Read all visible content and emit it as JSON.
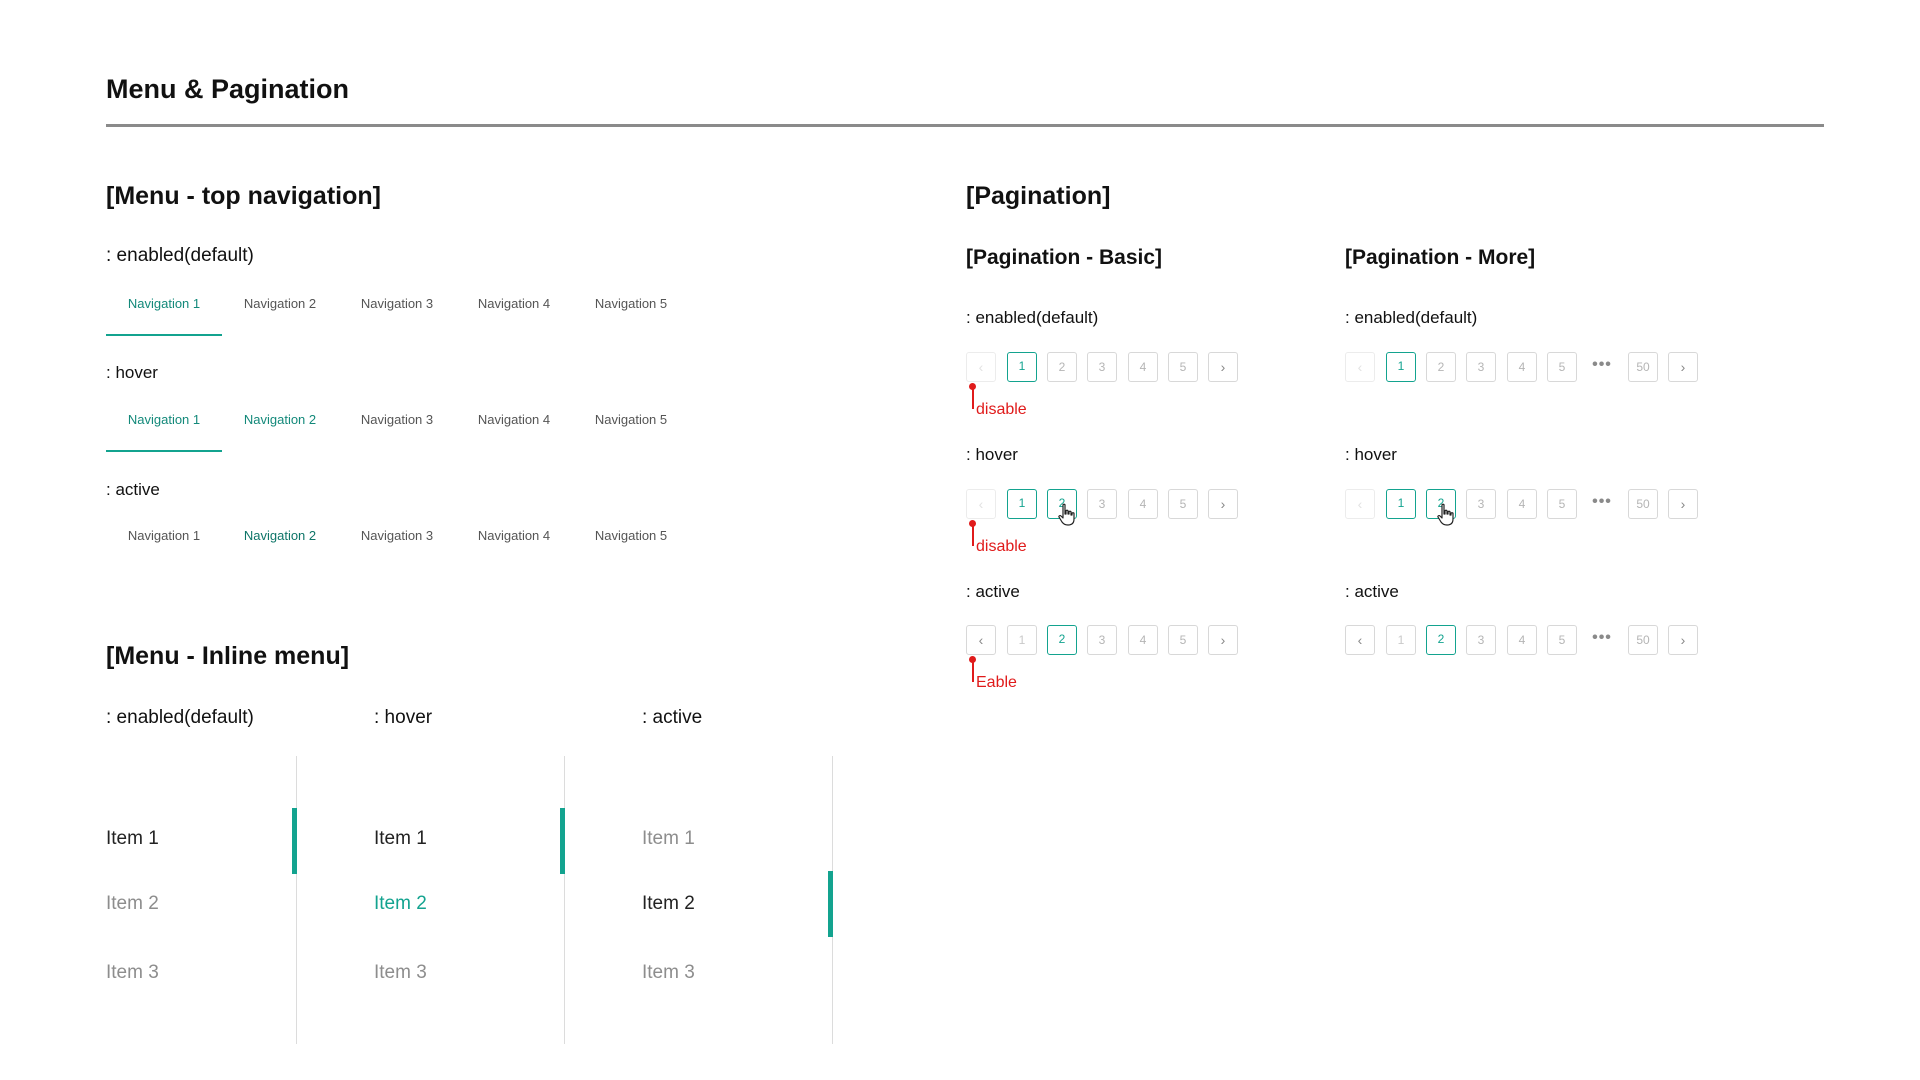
{
  "page": {
    "title": "Menu & Pagination"
  },
  "top_nav": {
    "section_title": "[Menu - top navigation]",
    "states": [
      {
        "label": ": enabled(default)",
        "items": [
          "Navigation 1",
          "Navigation 2",
          "Navigation 3",
          "Navigation 4",
          "Navigation 5"
        ],
        "selected": 1,
        "highlighted": []
      },
      {
        "label": ": hover",
        "items": [
          "Navigation 1",
          "Navigation 2",
          "Navigation 3",
          "Navigation 4",
          "Navigation 5"
        ],
        "selected": 1,
        "highlighted": [
          2
        ]
      },
      {
        "label": ": active",
        "items": [
          "Navigation 1",
          "Navigation 2",
          "Navigation 3",
          "Navigation 4",
          "Navigation 5"
        ],
        "selected": 0,
        "highlighted": [
          2
        ]
      }
    ]
  },
  "inline_menu": {
    "section_title": "[Menu - Inline menu]",
    "columns": [
      {
        "label": ": enabled(default)",
        "items": [
          "Item 1",
          "Item 2",
          "Item 3"
        ],
        "indicator_item": 1
      },
      {
        "label": ": hover",
        "items": [
          "Item 1",
          "Item 2",
          "Item 3"
        ],
        "indicator_item": 1
      },
      {
        "label": ": active",
        "items": [
          "Item 1",
          "Item 2",
          "Item 3"
        ],
        "indicator_item": 2
      }
    ]
  },
  "pagination": {
    "section_title": "[Pagination]",
    "basic": {
      "title": "[Pagination - Basic]",
      "states": [
        {
          "label": ": enabled(default)",
          "pages": [
            "1",
            "2",
            "3",
            "4",
            "5"
          ],
          "current": "1",
          "annotation": "disable"
        },
        {
          "label": ": hover",
          "pages": [
            "1",
            "2",
            "3",
            "4",
            "5"
          ],
          "current": "1",
          "hover": "2",
          "annotation": "disable"
        },
        {
          "label": ": active",
          "pages": [
            "1",
            "2",
            "3",
            "4",
            "5"
          ],
          "current": "2",
          "annotation": "Eable"
        }
      ]
    },
    "more": {
      "title": "[Pagination - More]",
      "states": [
        {
          "label": ": enabled(default)",
          "pages": [
            "1",
            "2",
            "3",
            "4",
            "5"
          ],
          "last": "50",
          "current": "1"
        },
        {
          "label": ": hover",
          "pages": [
            "1",
            "2",
            "3",
            "4",
            "5"
          ],
          "last": "50",
          "current": "1",
          "hover": "2"
        },
        {
          "label": ": active",
          "pages": [
            "1",
            "2",
            "3",
            "4",
            "5"
          ],
          "last": "50",
          "current": "2"
        }
      ]
    },
    "icons": {
      "prev": "chevron-left-icon",
      "next": "chevron-right-icon",
      "ellipsis": "ellipsis-icon",
      "cursor": "hand-pointer-icon"
    },
    "symbols": {
      "prev": "‹",
      "next": "›",
      "ellipsis": "•••"
    }
  },
  "colors": {
    "accent": "#13a38f",
    "annotation": "#e01b1b"
  }
}
